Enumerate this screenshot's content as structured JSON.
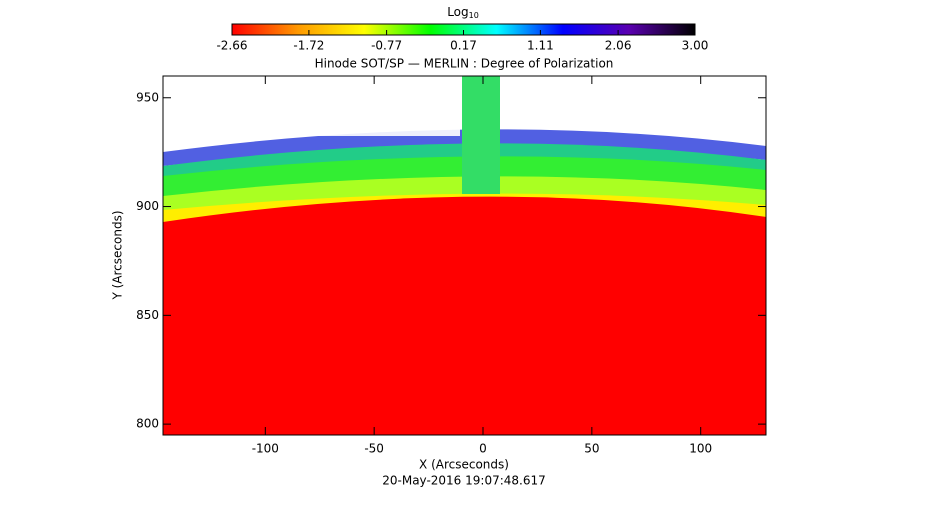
{
  "chart_data": {
    "type": "image",
    "title": "Hinode SOT/SP — MERLIN : Degree of Polarization",
    "x_label": "X (Arcseconds)",
    "y_label": "Y (Arcseconds)",
    "timestamp": "20-May-2016 19:07:48.617",
    "xlim": [
      -147,
      130
    ],
    "xticks": [
      -100,
      -50,
      0,
      50,
      100
    ],
    "ylim": [
      795,
      960
    ],
    "yticks": [
      800,
      850,
      900,
      950
    ],
    "colorbar": {
      "label": {
        "base": "Log",
        "subscript": "10"
      },
      "clim": [
        -2.66,
        3
      ],
      "ticks": [
        -2.66,
        -1.72,
        -0.77,
        0.17,
        1.11,
        {
          "value": 2.06,
          "label": "2.06"
        },
        {
          "value": 3,
          "label": "3.00"
        }
      ],
      "colors": [
        "#ff0000",
        "#ff9900",
        "#ffff00",
        "#00ff00",
        "#00ffff",
        "#0000ff",
        "#5a00b0",
        "#000000"
      ]
    }
  }
}
